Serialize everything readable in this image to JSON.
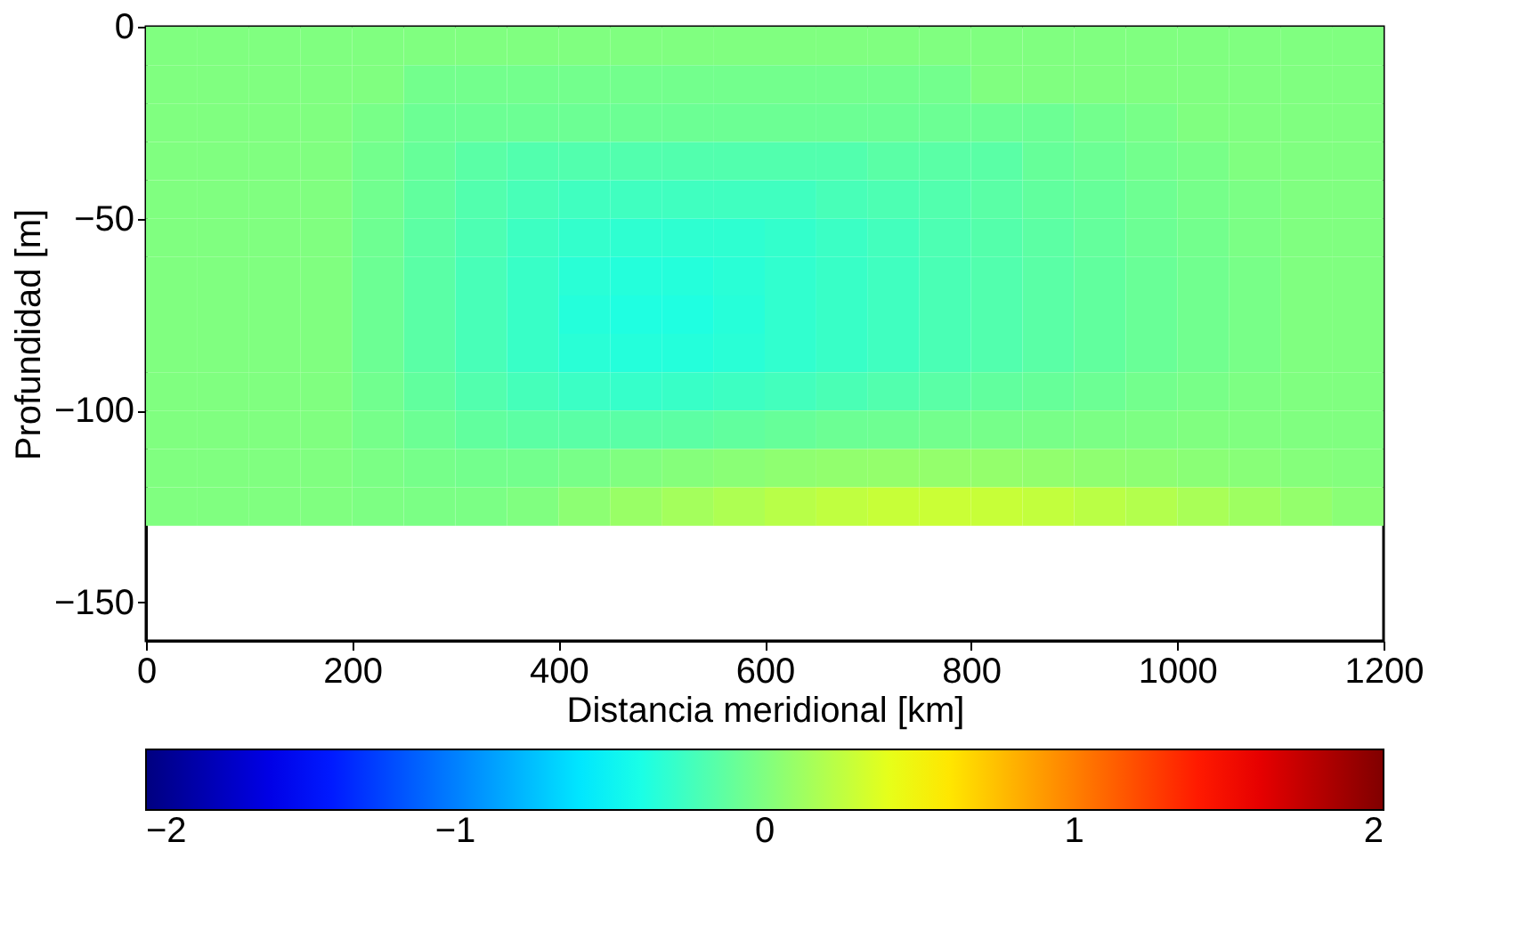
{
  "chart_data": {
    "type": "heatmap",
    "xlabel": "Distancia meridional [km]",
    "ylabel": "Profundidad [m]",
    "x": [
      25,
      75,
      125,
      175,
      225,
      275,
      325,
      375,
      425,
      475,
      525,
      575,
      625,
      675,
      725,
      775,
      825,
      875,
      925,
      975,
      1025,
      1075,
      1125,
      1175
    ],
    "y": [
      -5,
      -15,
      -25,
      -35,
      -45,
      -55,
      -65,
      -75,
      -85,
      -95,
      -105,
      -115,
      -125
    ],
    "cells": [
      [
        0,
        0,
        0,
        0,
        0,
        0,
        0,
        0,
        0,
        0,
        0,
        0,
        0,
        0,
        0,
        0,
        0,
        0,
        0,
        0,
        0,
        0,
        0,
        0
      ],
      [
        0,
        0,
        0,
        0,
        0,
        -0.05,
        -0.05,
        -0.05,
        -0.05,
        -0.05,
        -0.05,
        -0.05,
        -0.05,
        -0.05,
        -0.05,
        -0.05,
        0,
        0,
        0,
        0,
        0,
        0,
        0,
        0
      ],
      [
        0,
        0,
        0,
        0,
        -0.03,
        -0.08,
        -0.08,
        -0.08,
        -0.08,
        -0.08,
        -0.08,
        -0.08,
        -0.08,
        -0.08,
        -0.08,
        -0.08,
        -0.08,
        -0.08,
        -0.05,
        -0.03,
        0,
        0,
        0,
        0
      ],
      [
        0,
        0,
        0,
        0,
        -0.05,
        -0.1,
        -0.15,
        -0.18,
        -0.18,
        -0.18,
        -0.18,
        -0.18,
        -0.18,
        -0.18,
        -0.15,
        -0.15,
        -0.15,
        -0.1,
        -0.08,
        -0.05,
        -0.03,
        0,
        0,
        0
      ],
      [
        0,
        0,
        0,
        0,
        -0.06,
        -0.12,
        -0.18,
        -0.22,
        -0.25,
        -0.25,
        -0.25,
        -0.25,
        -0.25,
        -0.22,
        -0.2,
        -0.18,
        -0.15,
        -0.12,
        -0.1,
        -0.07,
        -0.04,
        -0.02,
        0,
        0
      ],
      [
        0,
        0,
        0,
        0,
        -0.07,
        -0.14,
        -0.2,
        -0.26,
        -0.3,
        -0.32,
        -0.32,
        -0.32,
        -0.3,
        -0.27,
        -0.24,
        -0.2,
        -0.17,
        -0.14,
        -0.11,
        -0.08,
        -0.05,
        -0.02,
        0,
        0
      ],
      [
        0,
        0,
        0,
        0,
        -0.08,
        -0.15,
        -0.22,
        -0.28,
        -0.34,
        -0.36,
        -0.36,
        -0.34,
        -0.31,
        -0.28,
        -0.25,
        -0.21,
        -0.18,
        -0.15,
        -0.12,
        -0.09,
        -0.06,
        -0.03,
        0,
        0
      ],
      [
        0,
        0,
        0,
        0,
        -0.08,
        -0.15,
        -0.22,
        -0.28,
        -0.36,
        -0.38,
        -0.38,
        -0.35,
        -0.31,
        -0.28,
        -0.25,
        -0.21,
        -0.18,
        -0.15,
        -0.12,
        -0.09,
        -0.06,
        -0.03,
        0,
        0
      ],
      [
        0,
        0,
        0,
        0,
        -0.08,
        -0.15,
        -0.22,
        -0.28,
        -0.34,
        -0.36,
        -0.36,
        -0.34,
        -0.31,
        -0.28,
        -0.25,
        -0.21,
        -0.18,
        -0.15,
        -0.12,
        -0.09,
        -0.06,
        -0.03,
        0,
        0
      ],
      [
        0,
        0,
        0,
        0,
        -0.06,
        -0.12,
        -0.18,
        -0.23,
        -0.27,
        -0.29,
        -0.28,
        -0.26,
        -0.24,
        -0.21,
        -0.18,
        -0.15,
        -0.12,
        -0.1,
        -0.08,
        -0.05,
        -0.03,
        -0.01,
        0,
        0
      ],
      [
        0,
        0,
        0,
        0,
        -0.04,
        -0.08,
        -0.12,
        -0.14,
        -0.15,
        -0.15,
        -0.14,
        -0.12,
        -0.1,
        -0.08,
        -0.07,
        -0.05,
        -0.04,
        -0.03,
        -0.02,
        -0.01,
        0,
        0,
        0,
        0
      ],
      [
        0,
        0,
        0,
        0,
        -0.02,
        -0.04,
        -0.05,
        -0.05,
        -0.03,
        0,
        0.02,
        0.04,
        0.06,
        0.07,
        0.08,
        0.08,
        0.08,
        0.07,
        0.06,
        0.05,
        0.04,
        0.03,
        0.02,
        0.01
      ],
      [
        0,
        0,
        0,
        0,
        -0.01,
        -0.02,
        -0.02,
        0,
        0.05,
        0.1,
        0.14,
        0.18,
        0.22,
        0.25,
        0.28,
        0.29,
        0.28,
        0.26,
        0.23,
        0.2,
        0.16,
        0.12,
        0.08,
        0.04
      ]
    ],
    "clim": [
      -2,
      2
    ],
    "cticks": [
      -2,
      -1,
      0,
      1,
      2
    ],
    "xlim": [
      0,
      1200
    ],
    "xticks": [
      0,
      200,
      400,
      600,
      800,
      1000,
      1200
    ],
    "ylim": [
      -160,
      0
    ],
    "yticks": [
      0,
      -50,
      -100,
      -150
    ],
    "grid": false
  }
}
